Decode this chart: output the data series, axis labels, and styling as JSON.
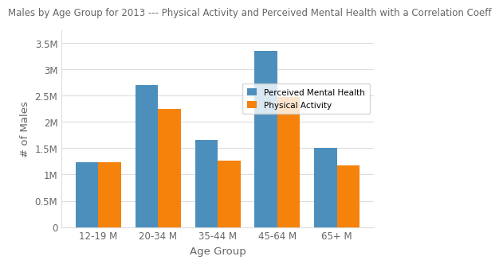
{
  "title": "Males by Age Group for 2013 --- Physical Activity and Perceived Mental Health with a Correlation Coeff",
  "xlabel": "Age Group",
  "ylabel": "# of Males",
  "categories": [
    "12-19 M",
    "20-34 M",
    "35-44 M",
    "45-64 M",
    "65+ M"
  ],
  "perceived_mental_health": [
    1230000,
    2700000,
    1650000,
    3350000,
    1500000
  ],
  "physical_activity": [
    1230000,
    2250000,
    1260000,
    2480000,
    1180000
  ],
  "bar_color_blue": "#4c8fbd",
  "bar_color_orange": "#f5820a",
  "background_color": "#ffffff",
  "plot_bg_color": "#ffffff",
  "grid_color": "#dddddd",
  "ylim": [
    0,
    3750000
  ],
  "yticks": [
    0,
    500000,
    1000000,
    1500000,
    2000000,
    2500000,
    3000000,
    3500000
  ],
  "ytick_labels": [
    "0",
    "0.5M",
    "1M",
    "1.5M",
    "2M",
    "2.5M",
    "3M",
    "3.5M"
  ],
  "legend_labels": [
    "Perceived Mental Health",
    "Physical Activity"
  ],
  "title_fontsize": 8.5,
  "axis_label_fontsize": 9.5,
  "tick_fontsize": 8.5,
  "text_color": "#666666",
  "bar_width": 0.38
}
